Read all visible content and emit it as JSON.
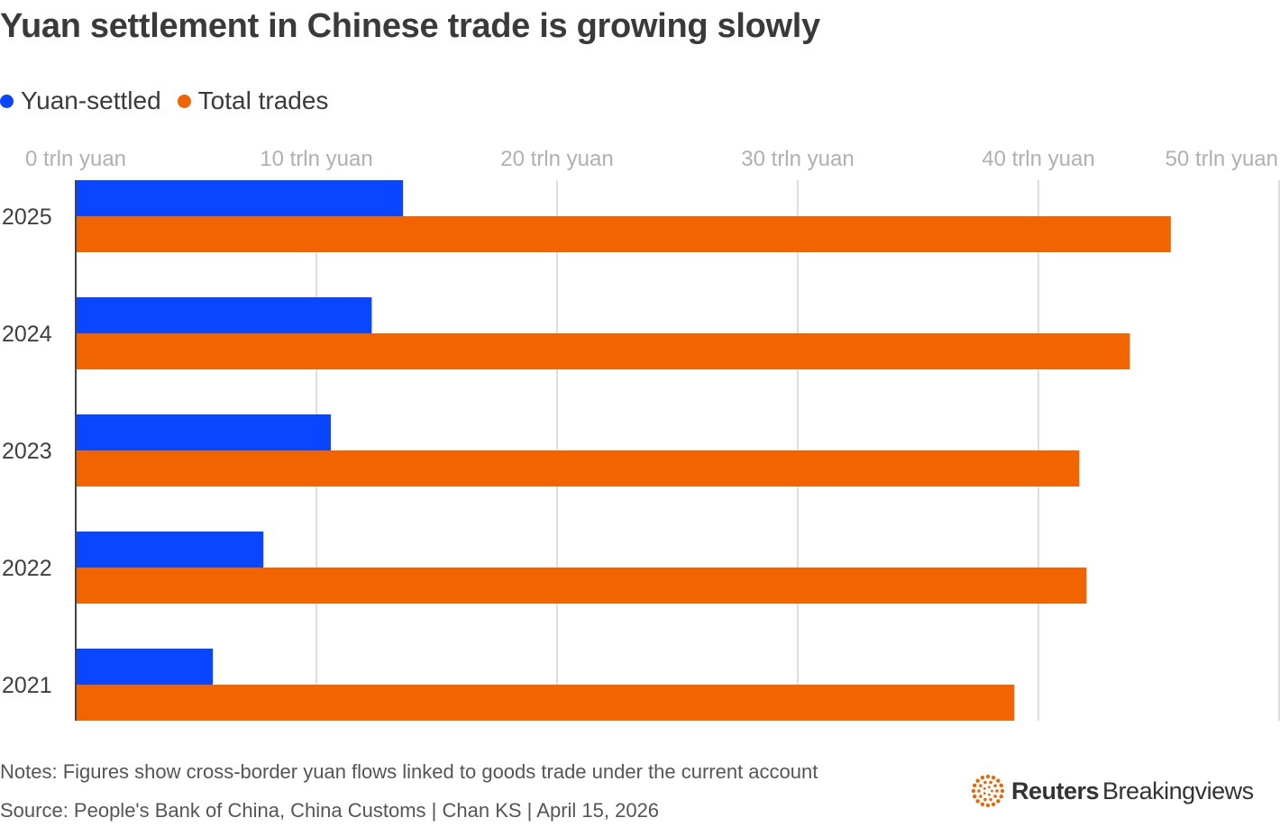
{
  "colors": {
    "yuan_settled": "#0a45ff",
    "total_trades": "#f26400",
    "gridline": "#d4d4d4",
    "axis_label": "#b0b0b0",
    "logo_accent": "#f26400"
  },
  "chart_data": {
    "type": "bar",
    "orientation": "horizontal",
    "title": "Yuan settlement in Chinese trade is growing slowly",
    "categories": [
      "2025",
      "2024",
      "2023",
      "2022",
      "2021"
    ],
    "series": [
      {
        "name": "Yuan-settled",
        "values": [
          13.6,
          12.3,
          10.6,
          7.8,
          5.7
        ]
      },
      {
        "name": "Total trades",
        "values": [
          45.5,
          43.8,
          41.7,
          42.0,
          39.0
        ]
      }
    ],
    "xlim": [
      0,
      50
    ],
    "xticks": [
      0,
      10,
      20,
      30,
      40,
      50
    ],
    "xtick_labels": [
      "0 trln yuan",
      "10 trln yuan",
      "20 trln yuan",
      "30 trln yuan",
      "40 trln yuan",
      "50 trln yuan"
    ],
    "legend_position": "top-left",
    "grid": true
  },
  "notes": "Notes: Figures show cross-border yuan flows linked to goods trade under the current account",
  "source": "Source: People's Bank of China, China Customs | Chan KS | April 15, 2026",
  "logo": {
    "brand": "Reuters",
    "sub": "Breakingviews"
  }
}
